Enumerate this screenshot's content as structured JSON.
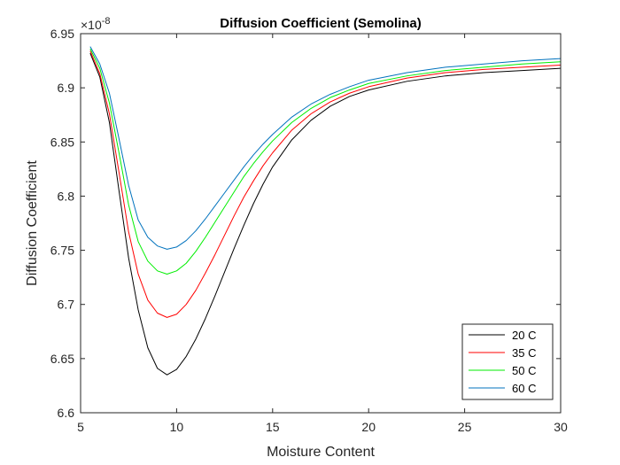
{
  "chart_data": {
    "type": "line",
    "title": "Diffusion Coefficient (Semolina)",
    "xlabel": "Moisture Content",
    "ylabel": "Diffusion Coefficient",
    "xlim": [
      5,
      30
    ],
    "ylim": [
      6.6,
      6.95
    ],
    "xticks": [
      "5",
      "10",
      "15",
      "20",
      "25",
      "30"
    ],
    "yticks": [
      "6.6",
      "6.65",
      "6.7",
      "6.75",
      "6.8",
      "6.85",
      "6.9",
      "6.95"
    ],
    "y_exponent_prefix": "×10",
    "y_exponent_power": "-8",
    "grid": false,
    "legend_position": "bottom-right",
    "colors": [
      "#000000",
      "#ff0000",
      "#00ee00",
      "#0072bd"
    ],
    "x": [
      5.5,
      6.0,
      6.5,
      7.0,
      7.5,
      8.0,
      8.5,
      9.0,
      9.5,
      10.0,
      10.5,
      11.0,
      11.5,
      12.0,
      12.5,
      13.0,
      13.5,
      14.0,
      14.5,
      15.0,
      16.0,
      17.0,
      18.0,
      19.0,
      20.0,
      22.0,
      24.0,
      26.0,
      28.0,
      30.0
    ],
    "series": [
      {
        "name": "20 C",
        "values": [
          6.932,
          6.91,
          6.868,
          6.805,
          6.743,
          6.695,
          6.66,
          6.641,
          6.635,
          6.64,
          6.652,
          6.668,
          6.687,
          6.708,
          6.73,
          6.752,
          6.773,
          6.793,
          6.811,
          6.827,
          6.852,
          6.87,
          6.883,
          6.892,
          6.898,
          6.906,
          6.911,
          6.914,
          6.916,
          6.918
        ]
      },
      {
        "name": "35 C",
        "values": [
          6.934,
          6.913,
          6.876,
          6.822,
          6.767,
          6.728,
          6.704,
          6.692,
          6.688,
          6.691,
          6.7,
          6.713,
          6.729,
          6.746,
          6.764,
          6.782,
          6.799,
          6.814,
          6.828,
          6.84,
          6.861,
          6.876,
          6.887,
          6.895,
          6.901,
          6.909,
          6.914,
          6.917,
          6.919,
          6.921
        ]
      },
      {
        "name": "50 C",
        "values": [
          6.936,
          6.918,
          6.886,
          6.84,
          6.792,
          6.758,
          6.74,
          6.731,
          6.728,
          6.731,
          6.738,
          6.749,
          6.762,
          6.776,
          6.79,
          6.804,
          6.818,
          6.83,
          6.841,
          6.851,
          6.868,
          6.881,
          6.891,
          6.898,
          6.904,
          6.911,
          6.916,
          6.919,
          6.922,
          6.924
        ]
      },
      {
        "name": "60 C",
        "values": [
          6.938,
          6.922,
          6.895,
          6.853,
          6.81,
          6.778,
          6.762,
          6.754,
          6.751,
          6.753,
          6.759,
          6.768,
          6.779,
          6.791,
          6.803,
          6.815,
          6.827,
          6.838,
          6.848,
          6.857,
          6.873,
          6.885,
          6.894,
          6.901,
          6.907,
          6.914,
          6.919,
          6.922,
          6.925,
          6.927
        ]
      }
    ]
  }
}
